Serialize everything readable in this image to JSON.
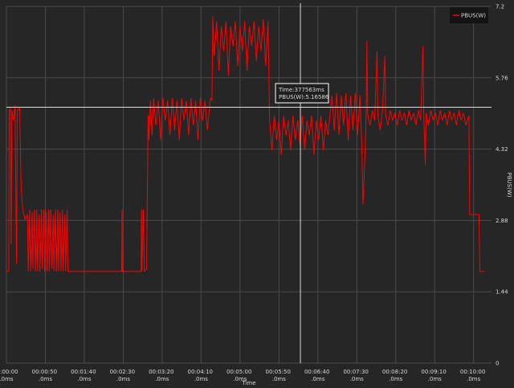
{
  "chart_data": {
    "type": "line",
    "x_label": "Time",
    "y_label": "PBUS(W)",
    "xlim": [
      0,
      623
    ],
    "ylim": [
      0,
      7.2
    ],
    "xticks": [
      {
        "value": 0,
        "label": "00:00:00 .0ms"
      },
      {
        "value": 50,
        "label": "00:00:50 .0ms"
      },
      {
        "value": 100,
        "label": "00:01:40 .0ms"
      },
      {
        "value": 150,
        "label": "00:02:30 .0ms"
      },
      {
        "value": 200,
        "label": "00:03:20 .0ms"
      },
      {
        "value": 250,
        "label": "00:04:10 .0ms"
      },
      {
        "value": 300,
        "label": "00:05:00 .0ms"
      },
      {
        "value": 350,
        "label": "00:05:50 .0ms"
      },
      {
        "value": 400,
        "label": "00:06:40 .0ms"
      },
      {
        "value": 450,
        "label": "00:07:30 .0ms"
      },
      {
        "value": 500,
        "label": "00:08:20 .0ms"
      },
      {
        "value": 550,
        "label": "00:09:10 .0ms"
      },
      {
        "value": 600,
        "label": "00:10:00 .0ms"
      }
    ],
    "yticks": [
      0,
      1.44,
      2.88,
      4.32,
      5.76,
      7.2
    ],
    "grid": true,
    "legend": "top-right",
    "crosshair": {
      "x": 377.563,
      "y": 5.16586,
      "labels": [
        "Time:377563ms",
        "PBUS(W):5.16586"
      ]
    },
    "x": [
      0,
      3,
      3.5,
      5,
      6,
      7,
      9,
      11,
      13,
      14,
      17,
      19,
      21,
      24,
      27,
      28,
      30,
      31,
      33,
      34,
      36,
      37,
      39,
      40,
      42,
      43,
      45,
      46,
      48,
      49,
      51,
      52,
      54,
      55,
      57,
      58,
      60,
      61,
      63,
      64,
      66,
      67,
      69,
      70,
      72,
      73,
      75,
      76,
      78,
      79,
      148,
      148.5,
      149,
      173,
      173.5,
      174,
      176,
      177,
      180,
      182,
      183,
      185,
      187,
      189,
      192,
      195,
      198,
      201,
      204,
      207,
      210,
      213,
      216,
      219,
      222,
      225,
      228,
      231,
      234,
      237,
      240,
      243,
      246,
      249,
      252,
      255,
      258,
      262,
      264,
      265,
      267,
      270,
      273,
      276,
      279,
      282,
      285,
      288,
      291,
      294,
      297,
      300,
      303,
      306,
      309,
      312,
      315,
      318,
      321,
      324,
      327,
      330,
      333,
      336,
      338,
      341,
      344,
      347,
      350,
      353,
      356,
      359,
      362,
      365,
      368,
      371,
      374,
      377,
      380,
      383,
      386,
      389,
      392,
      395,
      398,
      401,
      404,
      407,
      410,
      413,
      418,
      421,
      424,
      427,
      430,
      433,
      436,
      439,
      442,
      445,
      448,
      451,
      454,
      456,
      458,
      460,
      462,
      463,
      464,
      467,
      470,
      473,
      476,
      477,
      480,
      483,
      486,
      487,
      490,
      493,
      496,
      499,
      502,
      505,
      508,
      511,
      514,
      517,
      520,
      523,
      526,
      529,
      532,
      535,
      536,
      538,
      539,
      542,
      545,
      548,
      551,
      554,
      557,
      560,
      563,
      566,
      569,
      572,
      575,
      578,
      581,
      584,
      587,
      590,
      594,
      595,
      607,
      608,
      614
    ],
    "series": [
      {
        "name": "PBUS(W)",
        "color": "#ff0000",
        "values": [
          1.85,
          1.85,
          5.1,
          5.15,
          2.4,
          5.1,
          4.9,
          5.2,
          2.0,
          5.1,
          5.15,
          3.5,
          3.1,
          2.9,
          3.0,
          1.85,
          3.1,
          1.85,
          3.05,
          1.9,
          3.1,
          1.85,
          3.1,
          1.85,
          3.0,
          1.85,
          3.1,
          1.9,
          3.1,
          1.85,
          3.05,
          1.85,
          3.1,
          1.85,
          3.1,
          1.9,
          3.0,
          1.85,
          3.1,
          1.85,
          3.1,
          1.85,
          3.05,
          1.85,
          3.1,
          1.85,
          3.0,
          1.85,
          3.1,
          1.85,
          1.85,
          3.1,
          1.85,
          1.85,
          3.1,
          1.85,
          3.1,
          1.85,
          1.9,
          5.0,
          4.5,
          5.3,
          4.6,
          5.35,
          4.8,
          5.3,
          4.5,
          5.35,
          4.9,
          5.3,
          4.6,
          5.35,
          4.7,
          5.3,
          4.5,
          5.35,
          4.9,
          5.3,
          4.6,
          5.35,
          4.8,
          5.3,
          4.5,
          5.35,
          4.9,
          5.3,
          4.7,
          5.35,
          5.3,
          7.0,
          6.2,
          6.9,
          5.9,
          6.8,
          6.3,
          6.9,
          5.8,
          6.8,
          6.4,
          6.9,
          6.0,
          6.8,
          6.3,
          6.9,
          5.9,
          6.8,
          6.4,
          6.9,
          6.1,
          6.8,
          6.3,
          6.95,
          6.0,
          6.9,
          4.9,
          4.3,
          5.0,
          4.5,
          4.9,
          4.2,
          5.0,
          4.6,
          4.9,
          4.3,
          5.0,
          4.5,
          4.9,
          4.4,
          5.0,
          4.3,
          4.9,
          4.6,
          5.0,
          4.2,
          4.9,
          4.5,
          5.0,
          4.3,
          4.9,
          4.6,
          5.4,
          4.7,
          5.45,
          4.6,
          5.4,
          4.8,
          5.45,
          4.5,
          5.4,
          4.7,
          5.45,
          4.6,
          5.4,
          4.6,
          3.2,
          4.0,
          5.0,
          6.5,
          5.0,
          4.8,
          5.1,
          4.9,
          6.3,
          5.0,
          4.7,
          5.1,
          6.2,
          5.0,
          4.8,
          5.1,
          4.9,
          5.05,
          4.8,
          5.1,
          4.9,
          5.05,
          4.8,
          5.1,
          4.9,
          5.05,
          4.8,
          5.1,
          4.9,
          6.4,
          5.0,
          4.0,
          5.05,
          4.8,
          5.1,
          4.9,
          5.05,
          4.8,
          5.1,
          4.9,
          5.05,
          4.8,
          5.1,
          4.9,
          5.05,
          4.8,
          5.1,
          4.9,
          5.05,
          4.8,
          5.0,
          3.0,
          3.0,
          1.85,
          1.85
        ]
      }
    ]
  }
}
